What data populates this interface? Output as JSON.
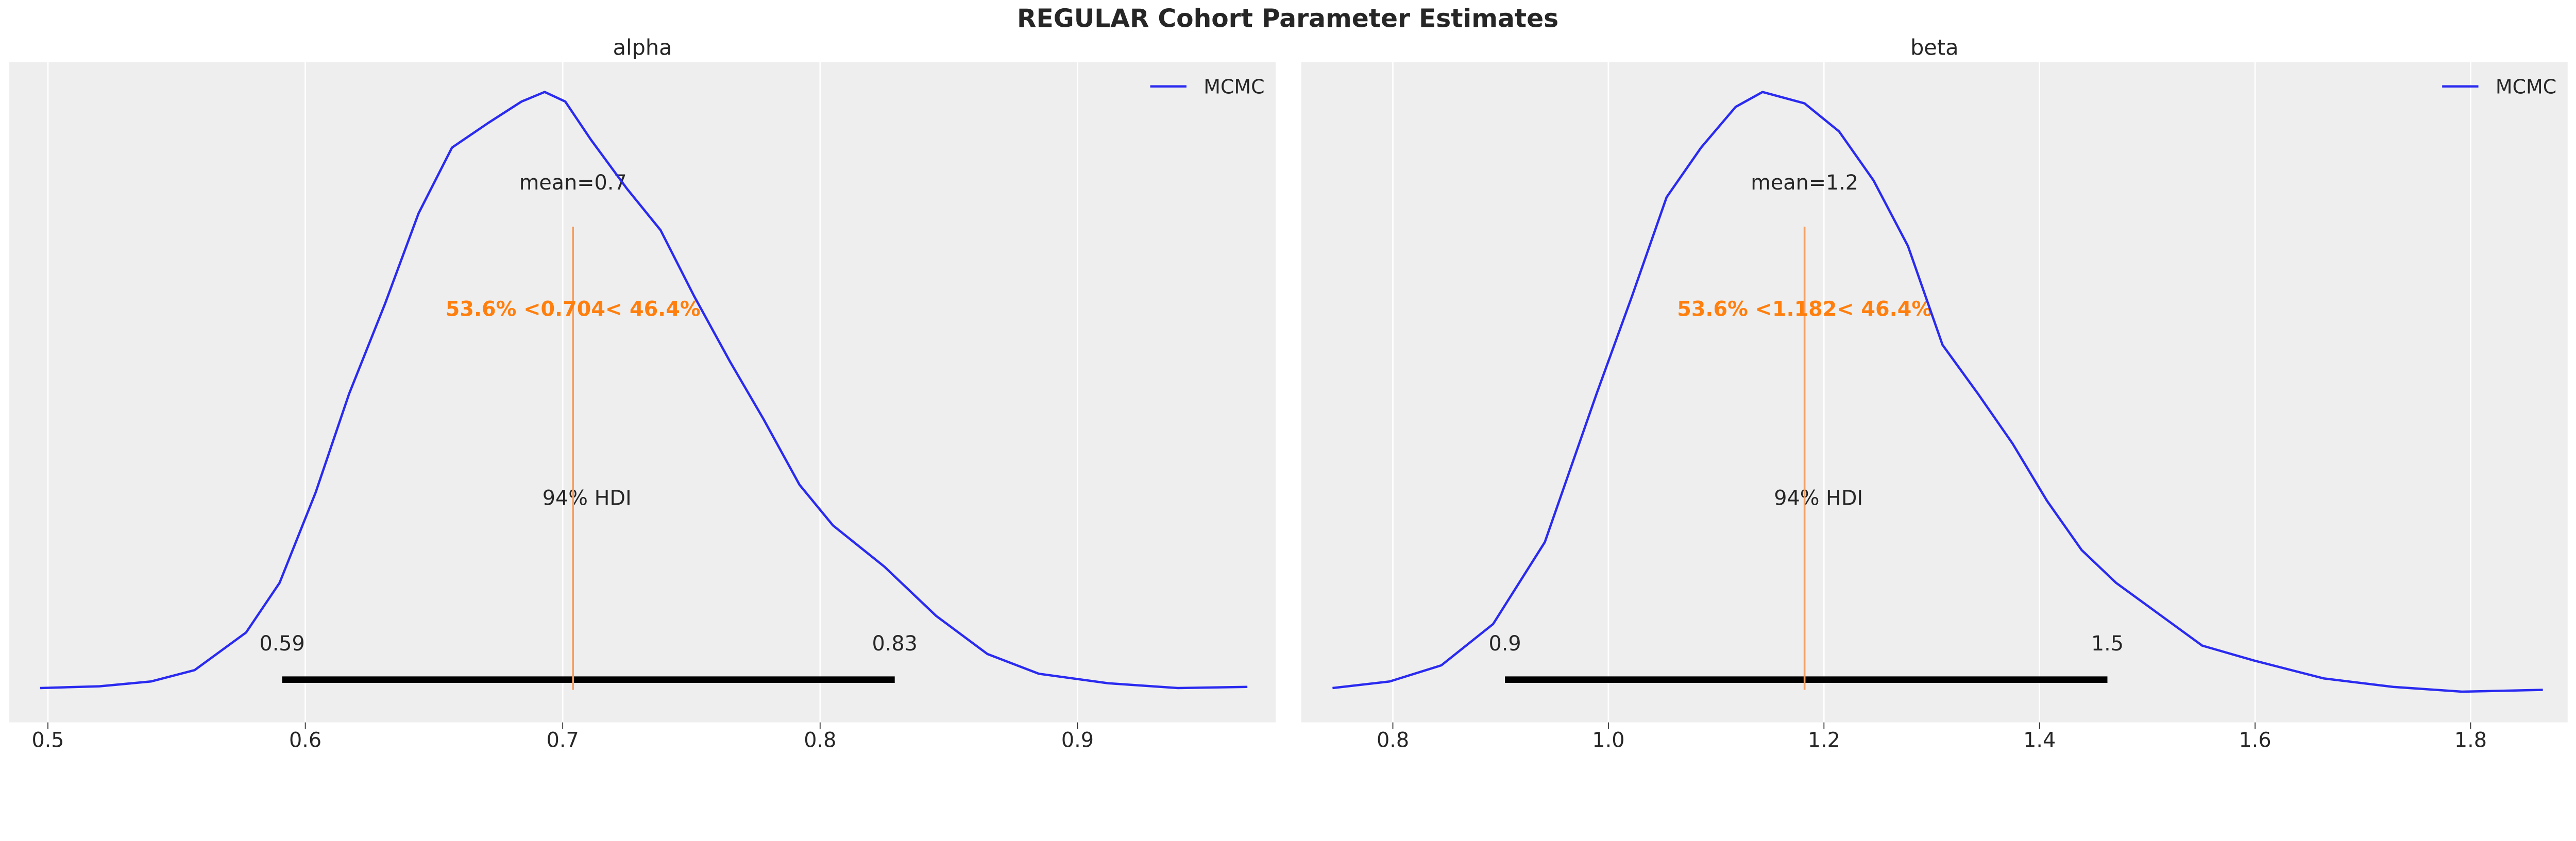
{
  "title": "REGULAR Cohort Parameter Estimates",
  "colors": {
    "density": "#2a2af0",
    "mean_line": "#f5a062",
    "annotation": "#ff7f0e",
    "hdi": "#000000",
    "panel_bg": "#eeeeee",
    "grid": "#ffffff"
  },
  "chart_data": [
    {
      "type": "line",
      "title": "alpha",
      "legend": {
        "label": "MCMC",
        "placement": "top-right"
      },
      "xlim": [
        0.485,
        0.977
      ],
      "xticks": [
        0.5,
        0.6,
        0.7,
        0.8,
        0.9
      ],
      "xtick_labels": [
        "0.5",
        "0.6",
        "0.7",
        "0.8",
        "0.9"
      ],
      "grid": true,
      "series": [
        {
          "name": "MCMC",
          "x": [
            0.497,
            0.52,
            0.54,
            0.557,
            0.577,
            0.59,
            0.604,
            0.617,
            0.631,
            0.644,
            0.657,
            0.671,
            0.684,
            0.693,
            0.701,
            0.711,
            0.725,
            0.738,
            0.751,
            0.765,
            0.778,
            0.792,
            0.805,
            0.825,
            0.845,
            0.865,
            0.885,
            0.912,
            0.939,
            0.966
          ],
          "y": [
            0.003,
            0.006,
            0.014,
            0.033,
            0.096,
            0.179,
            0.33,
            0.495,
            0.646,
            0.797,
            0.907,
            0.948,
            0.984,
            1.0,
            0.984,
            0.92,
            0.838,
            0.769,
            0.659,
            0.549,
            0.453,
            0.343,
            0.275,
            0.206,
            0.124,
            0.06,
            0.027,
            0.011,
            0.003,
            0.005
          ]
        }
      ],
      "mean": {
        "value": 0.704,
        "label": "mean=0.7"
      },
      "ref_annotation": "53.6% <0.704< 46.4%",
      "hdi": {
        "label": "94% HDI",
        "low": 0.591,
        "high": 0.829,
        "low_label": "0.59",
        "high_label": "0.83"
      }
    },
    {
      "type": "line",
      "title": "beta",
      "legend": {
        "label": "MCMC",
        "placement": "top-right"
      },
      "xlim": [
        0.715,
        1.89
      ],
      "xticks": [
        0.8,
        1.0,
        1.2,
        1.4,
        1.6,
        1.8
      ],
      "xtick_labels": [
        "0.8",
        "1.0",
        "1.2",
        "1.4",
        "1.6",
        "1.8"
      ],
      "grid": true,
      "series": [
        {
          "name": "MCMC",
          "x": [
            0.744,
            0.797,
            0.845,
            0.893,
            0.941,
            0.989,
            1.022,
            1.054,
            1.086,
            1.118,
            1.143,
            1.182,
            1.214,
            1.246,
            1.278,
            1.31,
            1.343,
            1.375,
            1.407,
            1.439,
            1.471,
            1.503,
            1.551,
            1.599,
            1.664,
            1.728,
            1.792,
            1.867
          ],
          "y": [
            0.003,
            0.014,
            0.041,
            0.11,
            0.247,
            0.495,
            0.659,
            0.824,
            0.907,
            0.975,
            1.0,
            0.981,
            0.934,
            0.852,
            0.742,
            0.577,
            0.495,
            0.412,
            0.316,
            0.234,
            0.179,
            0.137,
            0.074,
            0.049,
            0.019,
            0.005,
            -0.003,
            0.0
          ]
        }
      ],
      "mean": {
        "value": 1.182,
        "label": "mean=1.2"
      },
      "ref_annotation": "53.6% <1.182< 46.4%",
      "hdi": {
        "label": "94% HDI",
        "low": 0.904,
        "high": 1.463,
        "low_label": "0.9",
        "high_label": "1.5"
      }
    }
  ]
}
